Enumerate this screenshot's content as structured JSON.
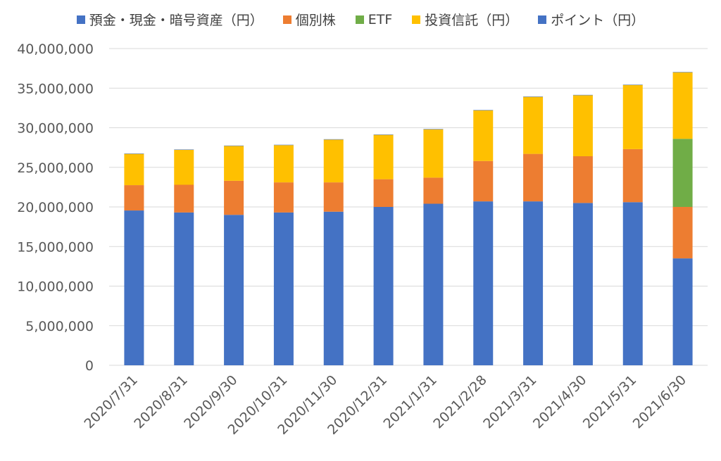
{
  "chart_data": {
    "type": "bar",
    "stacked": true,
    "categories": [
      "2020/7/31",
      "2020/8/31",
      "2020/9/30",
      "2020/10/31",
      "2020/11/30",
      "2020/12/31",
      "2021/1/31",
      "2021/2/28",
      "2021/3/31",
      "2021/4/30",
      "2021/5/31",
      "2021/6/30"
    ],
    "series": [
      {
        "name": "預金・現金・暗号資産（円）",
        "color": "#4472C4",
        "values": [
          19550000,
          19300000,
          19000000,
          19300000,
          19400000,
          20000000,
          20400000,
          20700000,
          20700000,
          20500000,
          20600000,
          13500000
        ]
      },
      {
        "name": "個別株",
        "color": "#ED7D31",
        "values": [
          3200000,
          3500000,
          4300000,
          3800000,
          3700000,
          3500000,
          3300000,
          5100000,
          6000000,
          5900000,
          6700000,
          6500000
        ]
      },
      {
        "name": "ETF",
        "color": "#70AD47",
        "values": [
          0,
          0,
          0,
          0,
          0,
          0,
          0,
          0,
          0,
          0,
          0,
          8600000
        ]
      },
      {
        "name": "投資信託（円）",
        "color": "#FFC000",
        "values": [
          3950000,
          4400000,
          4400000,
          4700000,
          5400000,
          5600000,
          6100000,
          6400000,
          7200000,
          7700000,
          8100000,
          8400000
        ]
      },
      {
        "name": "ポイント（円）",
        "color": "#4472C4",
        "values": [
          50000,
          50000,
          50000,
          50000,
          50000,
          50000,
          50000,
          50000,
          50000,
          50000,
          50000,
          50000
        ]
      }
    ],
    "y_ticks": [
      "0",
      "5,000,000",
      "10,000,000",
      "15,000,000",
      "20,000,000",
      "25,000,000",
      "30,000,000",
      "35,000,000",
      "40,000,000"
    ],
    "ylim": [
      0,
      40000000
    ],
    "legend_position": "top",
    "grid": true
  }
}
